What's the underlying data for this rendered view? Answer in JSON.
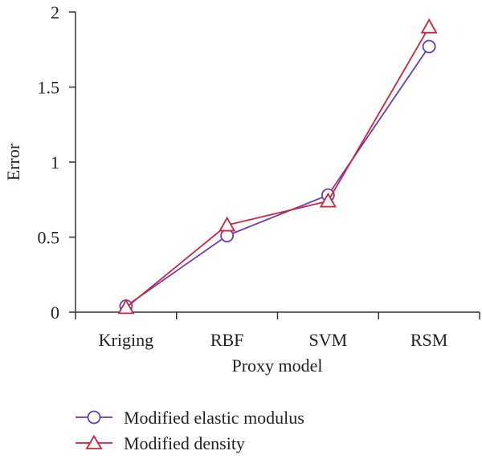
{
  "chart_data": {
    "type": "line",
    "categories": [
      "Kriging",
      "RBF",
      "SVM",
      "RSM"
    ],
    "xlabel": "Proxy model",
    "ylabel": "Error",
    "ylim": [
      0,
      2
    ],
    "yticks": [
      "0",
      "0.5",
      "1",
      "1.5",
      "2"
    ],
    "grid": false,
    "legend_position": "bottom-left",
    "series": [
      {
        "name": "Modified elastic modulus",
        "values": [
          0.04,
          0.51,
          0.78,
          1.77
        ],
        "color": "#6a3db5",
        "marker": "circle"
      },
      {
        "name": "Modified density",
        "values": [
          0.03,
          0.58,
          0.74,
          1.9
        ],
        "color": "#d4213b",
        "marker": "triangle"
      }
    ]
  }
}
